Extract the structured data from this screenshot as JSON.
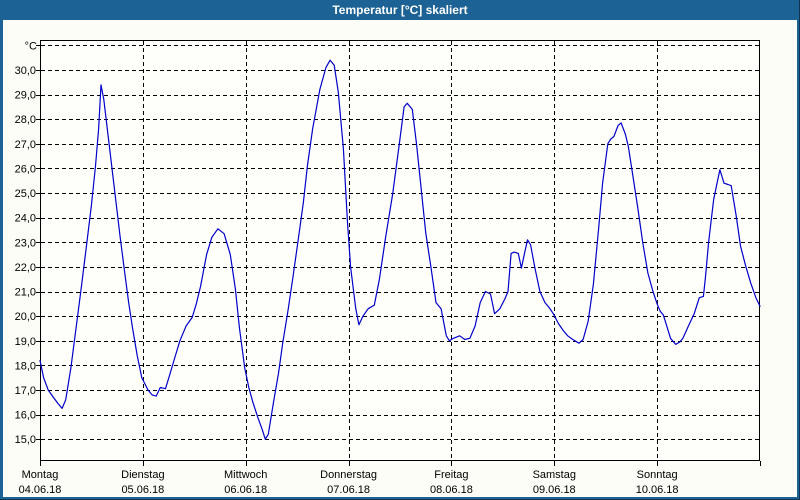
{
  "window": {
    "title": "Temperatur [°C] skaliert",
    "titlebar_color": "#1d6294",
    "background_color": "#fcfdf7"
  },
  "chart_data": {
    "type": "line",
    "title": "Temperatur [°C] skaliert",
    "ylabel": "°C",
    "xlabel": "",
    "grid": true,
    "legend": "none",
    "line_color": "#0000cc",
    "grid_color": "#000000",
    "ylim": [
      14.75,
      31.15
    ],
    "xlim_days": [
      0,
      7
    ],
    "series_name": "Temperatur",
    "y_axis": {
      "unit_label": "°C",
      "grid_values": [
        31,
        30,
        29,
        28,
        27,
        26,
        25,
        24,
        23,
        22,
        21,
        20,
        19,
        18,
        17,
        16,
        15
      ],
      "ticks": [
        {
          "value": 30,
          "label": "30,0"
        },
        {
          "value": 29,
          "label": "29,0"
        },
        {
          "value": 28,
          "label": "28,0"
        },
        {
          "value": 27,
          "label": "27,0"
        },
        {
          "value": 26,
          "label": "26,0"
        },
        {
          "value": 25,
          "label": "25,0"
        },
        {
          "value": 24,
          "label": "24,0"
        },
        {
          "value": 23,
          "label": "23,0"
        },
        {
          "value": 22,
          "label": "22,0"
        },
        {
          "value": 21,
          "label": "21,0"
        },
        {
          "value": 20,
          "label": "20,0"
        },
        {
          "value": 19,
          "label": "19,0"
        },
        {
          "value": 18,
          "label": "18,0"
        },
        {
          "value": 17,
          "label": "17,0"
        },
        {
          "value": 16,
          "label": "16,0"
        },
        {
          "value": 15,
          "label": "15,0"
        }
      ]
    },
    "days": [
      {
        "name": "Montag",
        "date": "04.06.18"
      },
      {
        "name": "Dienstag",
        "date": "05.06.18"
      },
      {
        "name": "Mittwoch",
        "date": "06.06.18"
      },
      {
        "name": "Donnerstag",
        "date": "07.06.18"
      },
      {
        "name": "Freitag",
        "date": "08.06.18"
      },
      {
        "name": "Samstag",
        "date": "09.06.18"
      },
      {
        "name": "Sonntag",
        "date": "10.06.18"
      }
    ],
    "points": [
      [
        0.0,
        18.2
      ],
      [
        0.035,
        17.5
      ],
      [
        0.08,
        17.0
      ],
      [
        0.13,
        16.7
      ],
      [
        0.175,
        16.45
      ],
      [
        0.215,
        16.25
      ],
      [
        0.25,
        16.6
      ],
      [
        0.3,
        17.9
      ],
      [
        0.35,
        19.5
      ],
      [
        0.4,
        21.1
      ],
      [
        0.45,
        22.8
      ],
      [
        0.5,
        24.5
      ],
      [
        0.54,
        26.1
      ],
      [
        0.57,
        27.6
      ],
      [
        0.593,
        29.4
      ],
      [
        0.62,
        28.8
      ],
      [
        0.66,
        27.4
      ],
      [
        0.7,
        26.0
      ],
      [
        0.74,
        24.6
      ],
      [
        0.78,
        23.2
      ],
      [
        0.82,
        21.9
      ],
      [
        0.86,
        20.6
      ],
      [
        0.9,
        19.5
      ],
      [
        0.945,
        18.4
      ],
      [
        0.99,
        17.5
      ],
      [
        1.05,
        17.0
      ],
      [
        1.09,
        16.8
      ],
      [
        1.13,
        16.75
      ],
      [
        1.17,
        17.1
      ],
      [
        1.22,
        17.05
      ],
      [
        1.26,
        17.6
      ],
      [
        1.31,
        18.3
      ],
      [
        1.36,
        19.0
      ],
      [
        1.42,
        19.6
      ],
      [
        1.48,
        19.95
      ],
      [
        1.52,
        20.5
      ],
      [
        1.56,
        21.2
      ],
      [
        1.62,
        22.5
      ],
      [
        1.67,
        23.2
      ],
      [
        1.73,
        23.55
      ],
      [
        1.79,
        23.35
      ],
      [
        1.85,
        22.5
      ],
      [
        1.9,
        21.1
      ],
      [
        1.94,
        19.5
      ],
      [
        1.99,
        17.9
      ],
      [
        2.03,
        17.1
      ],
      [
        2.07,
        16.5
      ],
      [
        2.12,
        15.85
      ],
      [
        2.16,
        15.4
      ],
      [
        2.19,
        15.0
      ],
      [
        2.22,
        15.2
      ],
      [
        2.27,
        16.5
      ],
      [
        2.32,
        17.7
      ],
      [
        2.36,
        18.9
      ],
      [
        2.41,
        20.2
      ],
      [
        2.46,
        21.6
      ],
      [
        2.51,
        23.1
      ],
      [
        2.56,
        24.6
      ],
      [
        2.6,
        26.1
      ],
      [
        2.65,
        27.6
      ],
      [
        2.72,
        29.2
      ],
      [
        2.78,
        30.1
      ],
      [
        2.82,
        30.4
      ],
      [
        2.86,
        30.2
      ],
      [
        2.9,
        29.1
      ],
      [
        2.95,
        26.8
      ],
      [
        2.99,
        23.8
      ],
      [
        3.02,
        22.0
      ],
      [
        3.04,
        21.3
      ],
      [
        3.07,
        20.3
      ],
      [
        3.1,
        19.65
      ],
      [
        3.14,
        20.0
      ],
      [
        3.19,
        20.3
      ],
      [
        3.25,
        20.45
      ],
      [
        3.3,
        21.5
      ],
      [
        3.36,
        23.2
      ],
      [
        3.43,
        25.0
      ],
      [
        3.49,
        26.9
      ],
      [
        3.54,
        28.5
      ],
      [
        3.57,
        28.65
      ],
      [
        3.62,
        28.4
      ],
      [
        3.66,
        27.0
      ],
      [
        3.7,
        25.4
      ],
      [
        3.75,
        23.4
      ],
      [
        3.8,
        22.0
      ],
      [
        3.85,
        20.55
      ],
      [
        3.9,
        20.3
      ],
      [
        3.95,
        19.2
      ],
      [
        3.98,
        19.0
      ],
      [
        4.02,
        19.1
      ],
      [
        4.08,
        19.2
      ],
      [
        4.13,
        19.05
      ],
      [
        4.18,
        19.1
      ],
      [
        4.23,
        19.6
      ],
      [
        4.28,
        20.55
      ],
      [
        4.33,
        21.0
      ],
      [
        4.38,
        20.9
      ],
      [
        4.42,
        20.1
      ],
      [
        4.47,
        20.3
      ],
      [
        4.52,
        20.7
      ],
      [
        4.55,
        21.0
      ],
      [
        4.58,
        22.55
      ],
      [
        4.61,
        22.6
      ],
      [
        4.65,
        22.55
      ],
      [
        4.68,
        21.95
      ],
      [
        4.71,
        22.55
      ],
      [
        4.74,
        23.1
      ],
      [
        4.77,
        22.9
      ],
      [
        4.81,
        22.0
      ],
      [
        4.86,
        21.0
      ],
      [
        4.91,
        20.55
      ],
      [
        4.95,
        20.35
      ],
      [
        4.99,
        20.1
      ],
      [
        5.04,
        19.7
      ],
      [
        5.09,
        19.4
      ],
      [
        5.13,
        19.2
      ],
      [
        5.18,
        19.05
      ],
      [
        5.24,
        18.9
      ],
      [
        5.28,
        19.05
      ],
      [
        5.33,
        19.8
      ],
      [
        5.38,
        21.3
      ],
      [
        5.43,
        23.5
      ],
      [
        5.47,
        25.4
      ],
      [
        5.52,
        27.0
      ],
      [
        5.55,
        27.2
      ],
      [
        5.58,
        27.3
      ],
      [
        5.62,
        27.75
      ],
      [
        5.65,
        27.85
      ],
      [
        5.69,
        27.4
      ],
      [
        5.72,
        26.9
      ],
      [
        5.76,
        25.8
      ],
      [
        5.81,
        24.45
      ],
      [
        5.86,
        23.0
      ],
      [
        5.91,
        21.75
      ],
      [
        5.96,
        21.0
      ],
      [
        6.0,
        20.5
      ],
      [
        6.03,
        20.2
      ],
      [
        6.06,
        20.05
      ],
      [
        6.09,
        19.65
      ],
      [
        6.13,
        19.1
      ],
      [
        6.18,
        18.85
      ],
      [
        6.22,
        18.95
      ],
      [
        6.25,
        19.1
      ],
      [
        6.31,
        19.65
      ],
      [
        6.36,
        20.1
      ],
      [
        6.41,
        20.75
      ],
      [
        6.45,
        20.8
      ],
      [
        6.47,
        21.6
      ],
      [
        6.5,
        23.0
      ],
      [
        6.55,
        24.75
      ],
      [
        6.59,
        25.55
      ],
      [
        6.61,
        25.95
      ],
      [
        6.65,
        25.4
      ],
      [
        6.69,
        25.35
      ],
      [
        6.72,
        25.3
      ],
      [
        6.77,
        24.05
      ],
      [
        6.81,
        22.85
      ],
      [
        6.86,
        22.05
      ],
      [
        6.91,
        21.35
      ],
      [
        6.96,
        20.75
      ],
      [
        7.0,
        20.4
      ]
    ]
  }
}
